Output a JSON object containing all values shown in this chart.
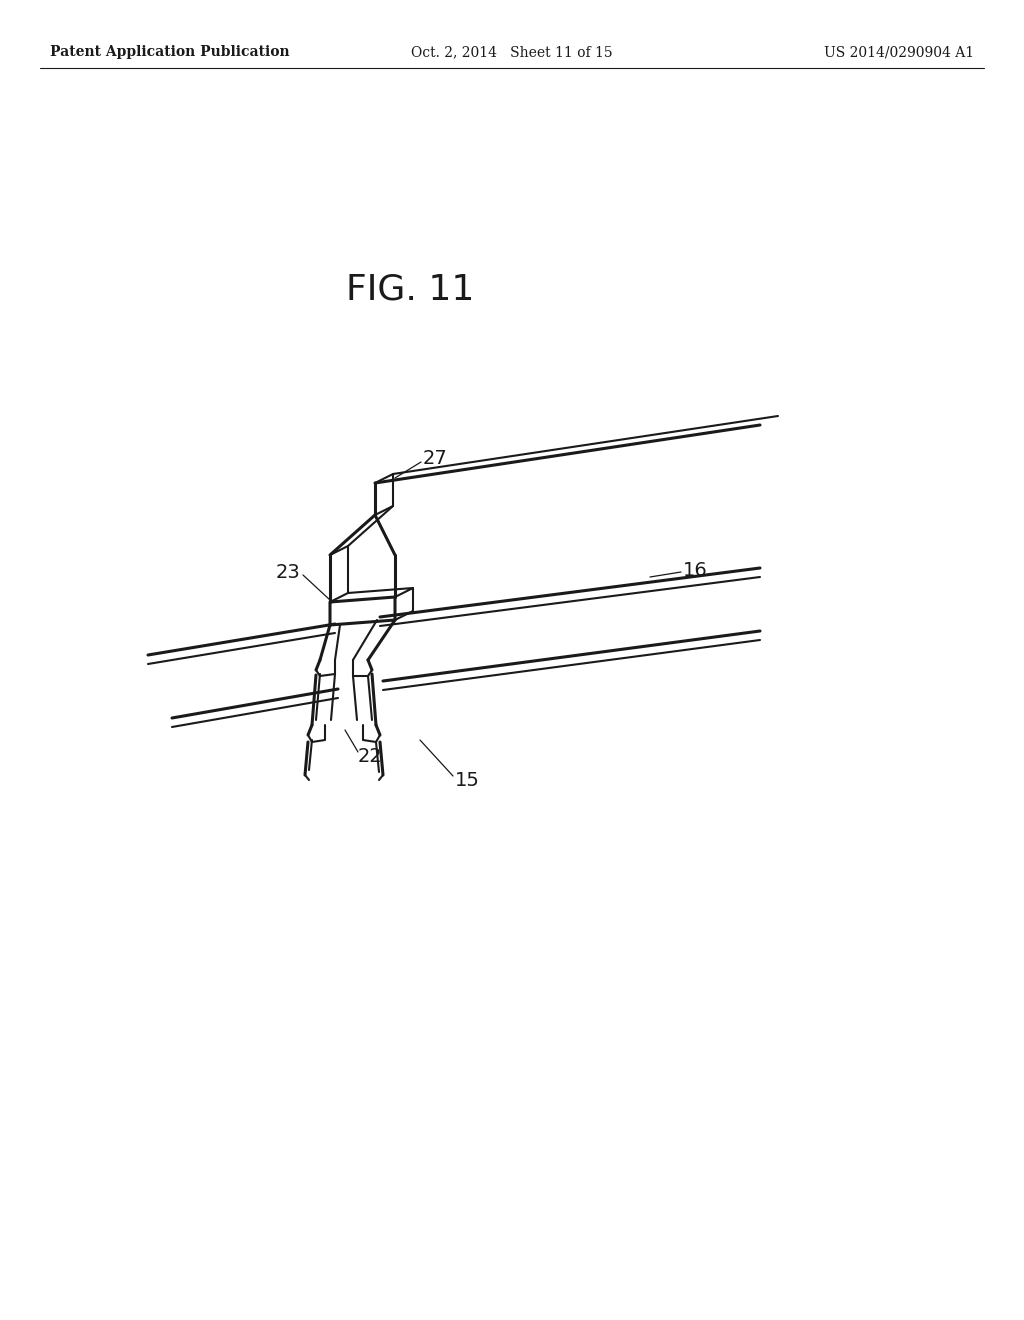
{
  "title": "FIG. 11",
  "header_left": "Patent Application Publication",
  "header_center": "Oct. 2, 2014   Sheet 11 of 15",
  "header_right": "US 2014/0290904 A1",
  "header_fontsize": 10,
  "title_fontsize": 26,
  "label_fontsize": 14,
  "background_color": "#ffffff",
  "line_color": "#1a1a1a",
  "lw_thin": 1.5,
  "lw_thick": 2.2,
  "lw_leader": 0.9
}
